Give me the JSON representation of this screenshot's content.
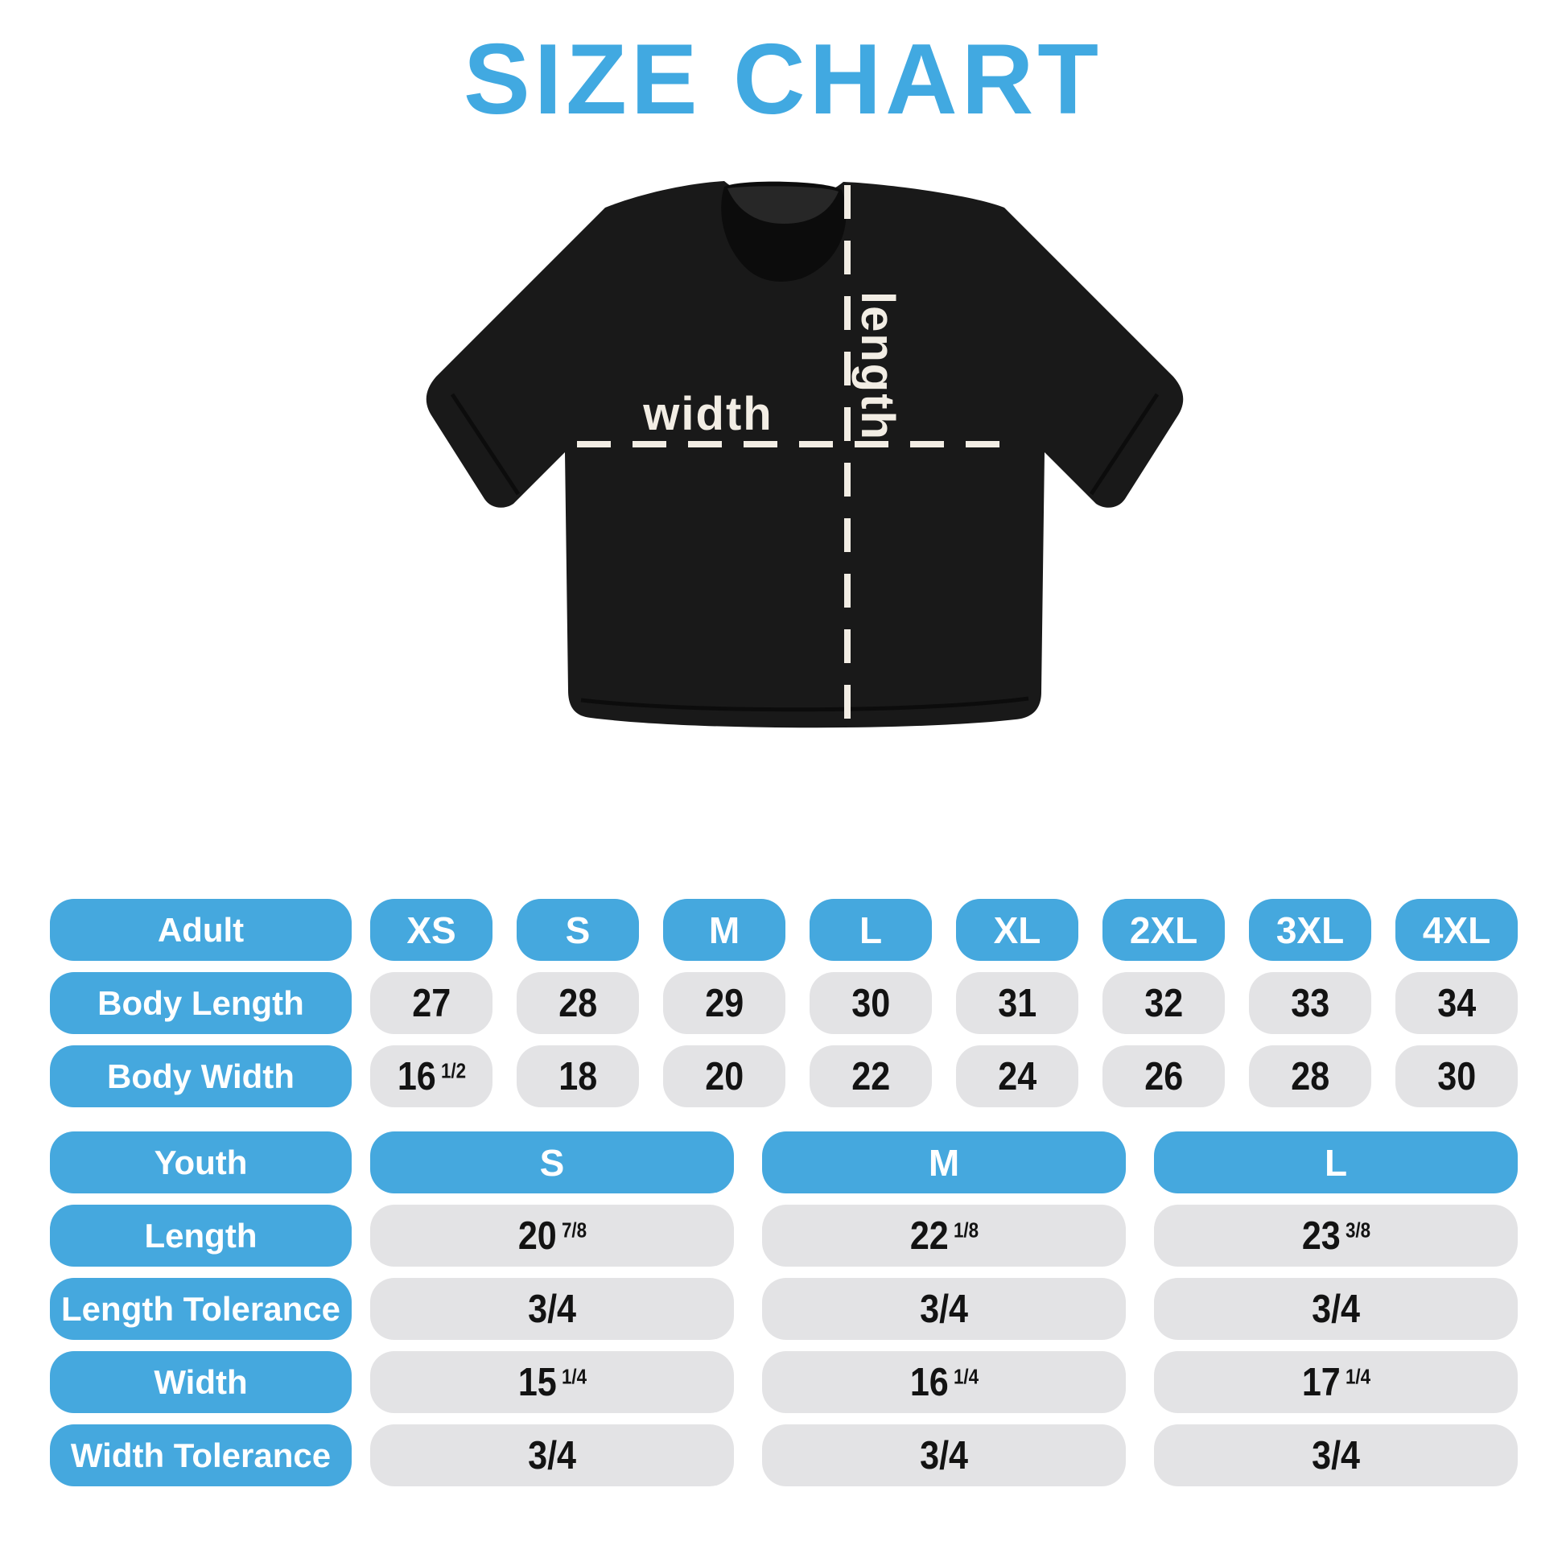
{
  "title": "SIZE CHART",
  "diagram": {
    "width_label": "width",
    "length_label": "length"
  },
  "colors": {
    "accent_blue": "#45A8DE",
    "title_blue": "#41A9E1",
    "cell_gray": "#E3E3E5",
    "shirt_black": "#191919",
    "dash_cream": "#F2EDE4"
  },
  "chart_data": [
    {
      "type": "table",
      "name": "adult-sizes",
      "header_label": "Adult",
      "columns": [
        "XS",
        "S",
        "M",
        "L",
        "XL",
        "2XL",
        "3XL",
        "4XL"
      ],
      "rows": [
        {
          "label": "Body Length",
          "values": [
            "27",
            "28",
            "29",
            "30",
            "31",
            "32",
            "33",
            "34"
          ]
        },
        {
          "label": "Body Width",
          "values": [
            "16 1/2",
            "18",
            "20",
            "22",
            "24",
            "26",
            "28",
            "30"
          ]
        }
      ]
    },
    {
      "type": "table",
      "name": "youth-sizes",
      "header_label": "Youth",
      "columns": [
        "S",
        "M",
        "L"
      ],
      "rows": [
        {
          "label": "Length",
          "values": [
            "20 7/8",
            "22 1/8",
            "23 3/8"
          ]
        },
        {
          "label": "Length Tolerance",
          "values": [
            "3/4",
            "3/4",
            "3/4"
          ]
        },
        {
          "label": "Width",
          "values": [
            "15 1/4",
            "16 1/4",
            "17 1/4"
          ]
        },
        {
          "label": "Width Tolerance",
          "values": [
            "3/4",
            "3/4",
            "3/4"
          ]
        }
      ]
    }
  ]
}
